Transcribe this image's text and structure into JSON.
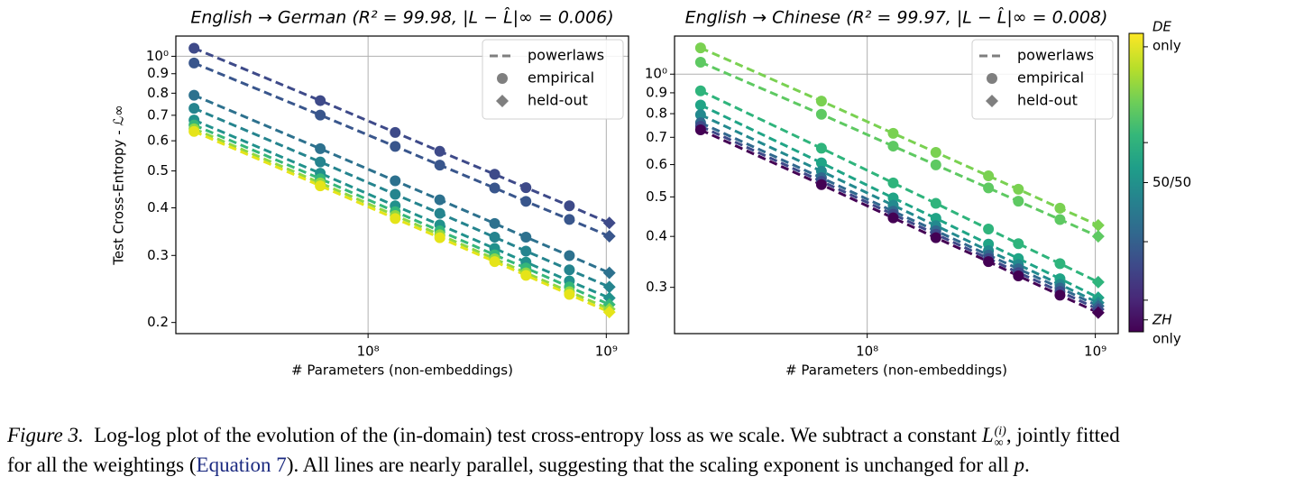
{
  "chart_data": [
    {
      "type": "line",
      "title": "English → German (R² = 99.98, |L − L̂|∞ = 0.006)",
      "xlabel": "# Parameters (non-embeddings)",
      "ylabel": "Test Cross-Entropy - ℒ∞",
      "x": [
        18600000,
        63000000,
        130000000,
        200000000,
        340000000,
        460000000,
        700000000,
        1030000000
      ],
      "marker_styles": [
        "circle",
        "circle",
        "circle",
        "circle",
        "circle",
        "circle",
        "circle",
        "diamond"
      ],
      "series": [
        {
          "color": "#3e4a89",
          "values": [
            1.05,
            0.765,
            0.631,
            0.563,
            0.49,
            0.452,
            0.405,
            0.365
          ]
        },
        {
          "color": "#39568c",
          "values": [
            0.96,
            0.701,
            0.58,
            0.518,
            0.451,
            0.416,
            0.373,
            0.337
          ]
        },
        {
          "color": "#2d718e",
          "values": [
            0.79,
            0.572,
            0.471,
            0.42,
            0.364,
            0.335,
            0.2997,
            0.27
          ]
        },
        {
          "color": "#25848e",
          "values": [
            0.73,
            0.528,
            0.434,
            0.387,
            0.335,
            0.308,
            0.275,
            0.248
          ]
        },
        {
          "color": "#21918c",
          "values": [
            0.68,
            0.493,
            0.405,
            0.361,
            0.313,
            0.288,
            0.257,
            0.232
          ]
        },
        {
          "color": "#35b779",
          "values": [
            0.66,
            0.477,
            0.391,
            0.348,
            0.301,
            0.278,
            0.248,
            0.223
          ]
        },
        {
          "color": "#8fd744",
          "values": [
            0.645,
            0.465,
            0.382,
            0.34,
            0.294,
            0.27,
            0.241,
            0.217
          ]
        },
        {
          "color": "#e5e419",
          "values": [
            0.635,
            0.457,
            0.375,
            0.334,
            0.289,
            0.266,
            0.237,
            0.213
          ]
        }
      ],
      "xscale": "log",
      "yscale": "log",
      "xlim": [
        15600000,
        1240000000
      ],
      "ylim": [
        0.187,
        1.13
      ],
      "xticks": [
        {
          "value": 100000000,
          "label": "10⁸"
        },
        {
          "value": 1000000000,
          "label": "10⁹"
        }
      ],
      "yticks": [
        0.2,
        0.3,
        0.4,
        0.5,
        0.6,
        0.7,
        0.8,
        0.9,
        {
          "value": 1,
          "label": "10⁰"
        }
      ],
      "grid": "major",
      "legend": {
        "corner": "upper right",
        "entries": [
          "powerlaws",
          "empirical",
          "held-out"
        ]
      }
    },
    {
      "type": "line",
      "title": "English → Chinese (R² = 99.97, |L − L̂|∞ = 0.008)",
      "xlabel": "# Parameters (non-embeddings)",
      "x": [
        18600000,
        63000000,
        130000000,
        200000000,
        340000000,
        460000000,
        700000000,
        1030000000
      ],
      "marker_styles": [
        "circle",
        "circle",
        "circle",
        "circle",
        "circle",
        "circle",
        "circle",
        "diamond"
      ],
      "series": [
        {
          "color": "#7ad151",
          "values": [
            1.16,
            0.859,
            0.716,
            0.643,
            0.563,
            0.522,
            0.469,
            0.426
          ]
        },
        {
          "color": "#5ec962",
          "values": [
            1.07,
            0.797,
            0.666,
            0.599,
            0.526,
            0.488,
            0.44,
            0.4
          ]
        },
        {
          "color": "#2fb47c",
          "values": [
            0.91,
            0.658,
            0.541,
            0.482,
            0.417,
            0.384,
            0.343,
            0.309
          ]
        },
        {
          "color": "#20a486",
          "values": [
            0.84,
            0.606,
            0.497,
            0.443,
            0.383,
            0.353,
            0.315,
            0.283
          ]
        },
        {
          "color": "#23898e",
          "values": [
            0.795,
            0.578,
            0.477,
            0.425,
            0.369,
            0.341,
            0.305,
            0.275
          ]
        },
        {
          "color": "#31688e",
          "values": [
            0.76,
            0.557,
            0.461,
            0.413,
            0.36,
            0.333,
            0.299,
            0.27
          ]
        },
        {
          "color": "#3e4989",
          "values": [
            0.745,
            0.546,
            0.453,
            0.405,
            0.353,
            0.326,
            0.293,
            0.265
          ]
        },
        {
          "color": "#440154",
          "values": [
            0.73,
            0.536,
            0.444,
            0.397,
            0.347,
            0.32,
            0.287,
            0.26
          ]
        }
      ],
      "xscale": "log",
      "yscale": "log",
      "xlim": [
        14300000,
        1260000000
      ],
      "ylim": [
        0.231,
        1.24
      ],
      "xticks": [
        {
          "value": 100000000,
          "label": "10⁸"
        },
        {
          "value": 1000000000,
          "label": "10⁹"
        }
      ],
      "yticks": [
        0.3,
        0.4,
        0.5,
        0.6,
        0.7,
        0.8,
        0.9,
        {
          "value": 1,
          "label": "10⁰"
        }
      ],
      "grid": "major",
      "legend": {
        "corner": "upper right",
        "entries": [
          "powerlaws",
          "empirical",
          "held-out"
        ]
      }
    }
  ],
  "colorbar": {
    "lim": [
      0,
      1
    ],
    "ticks": [
      {
        "value": 0.955,
        "label": [
          "DE",
          "only"
        ]
      },
      0.634,
      {
        "value": 0.5,
        "label": "50/50"
      },
      0.302,
      0.106,
      {
        "value": 0.04,
        "label": [
          "ZH",
          "only"
        ]
      }
    ]
  },
  "caption": {
    "label": "Figure 3.",
    "text_a": "Log-log plot of the evolution of the (in-domain) test cross-entropy loss as we scale. We subtract a constant ",
    "symbol": "L",
    "symbol_sup": "(i)",
    "symbol_sub": "∞",
    "text_b": ", jointly fitted",
    "text_c": "for all the weightings (",
    "link": "Equation 7",
    "text_d": "). All lines are nearly parallel, suggesting that the scaling exponent is unchanged for all ",
    "variable": "p",
    "text_e": "."
  }
}
